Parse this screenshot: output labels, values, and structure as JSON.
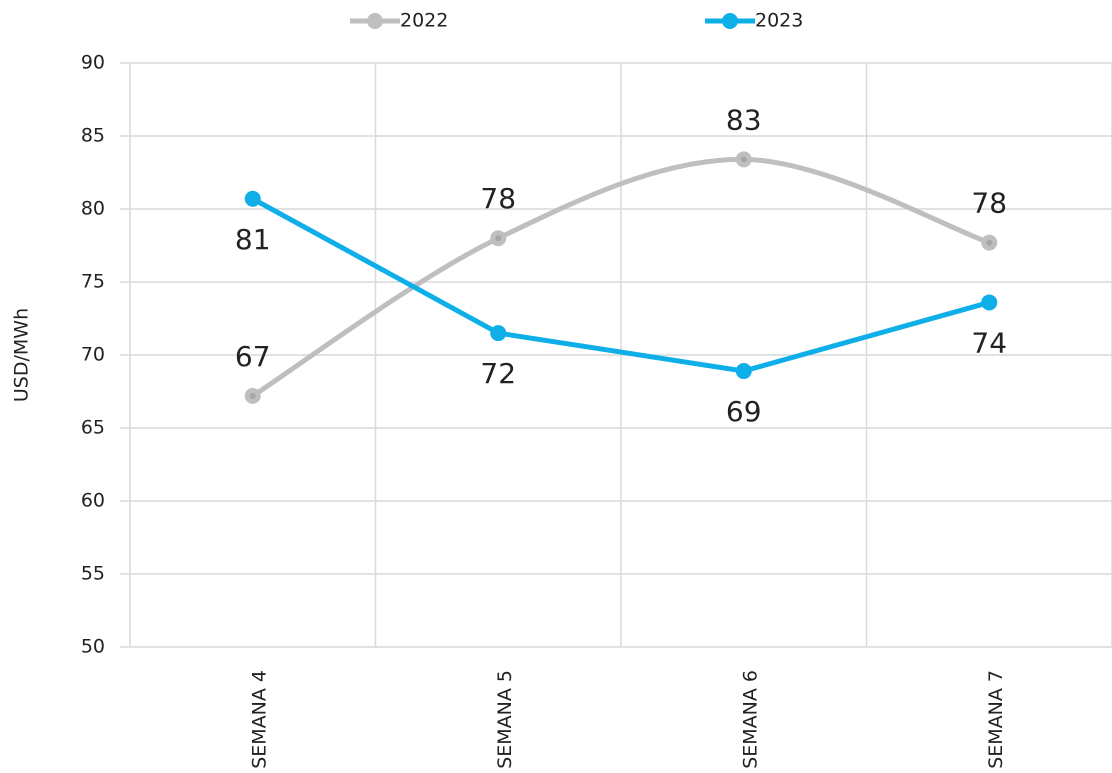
{
  "chart_data": {
    "type": "line",
    "y_label": "USD/MWh",
    "categories": [
      "SEMANA 4",
      "SEMANA 5",
      "SEMANA 6",
      "SEMANA 7"
    ],
    "series": [
      {
        "name": "2022",
        "color": "#bfbfbf",
        "smooth": true,
        "values": [
          67.2,
          78,
          83.4,
          77.7
        ],
        "value_labels": [
          "67",
          "78",
          "83",
          "78"
        ]
      },
      {
        "name": "2023",
        "color": "#0eaee8",
        "smooth": false,
        "values": [
          80.7,
          71.5,
          68.9,
          73.6
        ],
        "value_labels": [
          "81",
          "72",
          "69",
          "74"
        ]
      }
    ],
    "ylim": [
      50,
      90
    ],
    "yticks": [
      50,
      55,
      60,
      65,
      70,
      75,
      80,
      85,
      90
    ],
    "grid": true
  }
}
